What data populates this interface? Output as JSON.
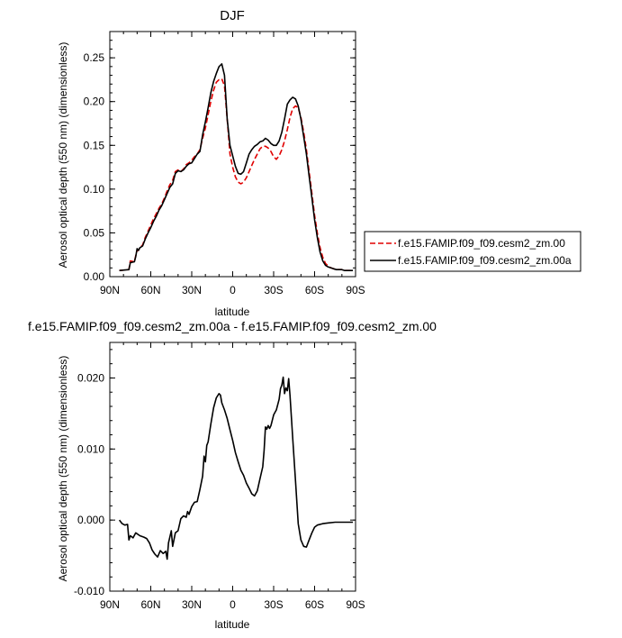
{
  "chart_data": [
    {
      "type": "line",
      "title": "DJF",
      "xlabel": "latitude",
      "ylabel": "Aerosol optical depth (550 nm) (dimensionless)",
      "xlim": [
        -90,
        90
      ],
      "ylim": [
        0,
        0.28
      ],
      "xticks": [
        -90,
        -60,
        -30,
        0,
        30,
        60,
        90
      ],
      "xticklabels": [
        "90N",
        "60N",
        "30N",
        "0",
        "30S",
        "60S",
        "90S"
      ],
      "yticks": [
        0,
        0.05,
        0.1,
        0.15,
        0.2,
        0.25
      ],
      "yticklabels": [
        "0.00",
        "0.05",
        "0.10",
        "0.15",
        "0.20",
        "0.25"
      ],
      "legend_position": "right",
      "series": [
        {
          "name": "f.e15.FAMIP.f09_f09.cesm2_zm.00",
          "color": "#e00000",
          "dash": "dashed",
          "x": [
            -83,
            -76,
            -75,
            -72,
            -71,
            -70,
            -69,
            -68,
            -66,
            -64,
            -62,
            -60,
            -58,
            -56,
            -54,
            -52,
            -50,
            -48,
            -46,
            -44,
            -42,
            -40,
            -38,
            -36,
            -34,
            -32,
            -30,
            -28,
            -26,
            -24,
            -22,
            -20,
            -18,
            -16,
            -14,
            -12,
            -10,
            -8,
            -6,
            -4,
            -2,
            0,
            2,
            4,
            6,
            8,
            10,
            12,
            14,
            16,
            18,
            20,
            22,
            24,
            26,
            28,
            30,
            32,
            34,
            36,
            38,
            40,
            42,
            44,
            46,
            48,
            50,
            52,
            54,
            56,
            58,
            60,
            62,
            64,
            66,
            68,
            70,
            72,
            74,
            76,
            78,
            80,
            82,
            84,
            86,
            88
          ],
          "y": [
            0.007,
            0.008,
            0.018,
            0.017,
            0.024,
            0.03,
            0.03,
            0.033,
            0.036,
            0.045,
            0.052,
            0.059,
            0.066,
            0.072,
            0.078,
            0.083,
            0.09,
            0.098,
            0.105,
            0.11,
            0.12,
            0.122,
            0.12,
            0.123,
            0.128,
            0.13,
            0.133,
            0.137,
            0.14,
            0.145,
            0.158,
            0.17,
            0.185,
            0.2,
            0.213,
            0.222,
            0.225,
            0.226,
            0.218,
            0.18,
            0.14,
            0.125,
            0.114,
            0.108,
            0.106,
            0.108,
            0.113,
            0.12,
            0.127,
            0.134,
            0.14,
            0.146,
            0.149,
            0.149,
            0.147,
            0.143,
            0.137,
            0.134,
            0.138,
            0.145,
            0.155,
            0.168,
            0.182,
            0.192,
            0.195,
            0.193,
            0.182,
            0.165,
            0.145,
            0.12,
            0.095,
            0.07,
            0.05,
            0.033,
            0.022,
            0.015,
            0.012,
            0.01,
            0.009,
            0.008,
            0.008,
            0.008,
            0.007,
            0.007,
            0.007,
            0.007
          ]
        },
        {
          "name": "f.e15.FAMIP.f09_f09.cesm2_zm.00a",
          "color": "#000000",
          "dash": "solid",
          "x": [
            -83,
            -76,
            -75,
            -72,
            -71,
            -70,
            -69,
            -68,
            -66,
            -64,
            -62,
            -60,
            -58,
            -56,
            -54,
            -52,
            -50,
            -48,
            -46,
            -44,
            -42,
            -40,
            -38,
            -36,
            -34,
            -32,
            -30,
            -28,
            -26,
            -24,
            -22,
            -20,
            -18,
            -16,
            -14,
            -12,
            -10,
            -8,
            -6,
            -4,
            -2,
            0,
            2,
            4,
            6,
            8,
            10,
            12,
            14,
            16,
            18,
            20,
            22,
            24,
            26,
            28,
            30,
            32,
            34,
            36,
            38,
            40,
            42,
            44,
            46,
            48,
            50,
            52,
            54,
            56,
            58,
            60,
            62,
            64,
            66,
            68,
            70,
            72,
            74,
            76,
            78,
            80,
            82,
            84,
            86,
            88
          ],
          "y": [
            0.007,
            0.008,
            0.016,
            0.017,
            0.023,
            0.032,
            0.03,
            0.033,
            0.035,
            0.043,
            0.05,
            0.056,
            0.063,
            0.069,
            0.076,
            0.081,
            0.088,
            0.095,
            0.102,
            0.106,
            0.118,
            0.121,
            0.12,
            0.122,
            0.126,
            0.129,
            0.13,
            0.135,
            0.14,
            0.143,
            0.162,
            0.177,
            0.193,
            0.21,
            0.223,
            0.232,
            0.24,
            0.243,
            0.23,
            0.18,
            0.15,
            0.138,
            0.126,
            0.118,
            0.117,
            0.12,
            0.13,
            0.14,
            0.145,
            0.149,
            0.151,
            0.154,
            0.155,
            0.158,
            0.156,
            0.152,
            0.15,
            0.15,
            0.155,
            0.165,
            0.18,
            0.197,
            0.202,
            0.205,
            0.203,
            0.195,
            0.18,
            0.16,
            0.14,
            0.115,
            0.09,
            0.065,
            0.045,
            0.028,
            0.018,
            0.013,
            0.011,
            0.01,
            0.009,
            0.008,
            0.008,
            0.008,
            0.007,
            0.007,
            0.007,
            0.007
          ]
        }
      ]
    },
    {
      "type": "line",
      "title": "f.e15.FAMIP.f09_f09.cesm2_zm.00a - f.e15.FAMIP.f09_f09.cesm2_zm.00",
      "xlabel": "latitude",
      "ylabel": "Aerosol optical depth (550 nm) (dimensionless)",
      "xlim": [
        -90,
        90
      ],
      "ylim": [
        -0.01,
        0.025
      ],
      "xticks": [
        -90,
        -60,
        -30,
        0,
        30,
        60,
        90
      ],
      "xticklabels": [
        "90N",
        "60N",
        "30N",
        "0",
        "30S",
        "60S",
        "90S"
      ],
      "yticks": [
        -0.01,
        0.0,
        0.01,
        0.02
      ],
      "yticklabels": [
        "-0.010",
        "0.000",
        "0.010",
        "0.020"
      ],
      "series": [
        {
          "color": "#000000",
          "dash": "solid",
          "x": [
            -83,
            -81,
            -79,
            -77,
            -76,
            -75,
            -73,
            -71,
            -68,
            -65,
            -63,
            -61,
            -59,
            -57,
            -55,
            -53,
            -51,
            -49,
            -48,
            -47,
            -45,
            -44,
            -42,
            -40,
            -38,
            -36,
            -34,
            -33,
            -32,
            -30,
            -28,
            -26,
            -24,
            -22,
            -21,
            -20,
            -19,
            -18,
            -16,
            -14,
            -12,
            -10,
            -9,
            -8,
            -6,
            -4,
            -2,
            0,
            2,
            4,
            6,
            8,
            10,
            12,
            14,
            16,
            18,
            20,
            22,
            23,
            24,
            25,
            26,
            27,
            28,
            30,
            32,
            34,
            35,
            36,
            37,
            38,
            39,
            40,
            41,
            42,
            43,
            44,
            46,
            48,
            50,
            52,
            54,
            56,
            58,
            60,
            62,
            66,
            70,
            75,
            80,
            88
          ],
          "y": [
            0.0,
            -0.0005,
            -0.0007,
            -0.0006,
            -0.0028,
            -0.0022,
            -0.0025,
            -0.0018,
            -0.0022,
            -0.0024,
            -0.0026,
            -0.0032,
            -0.0042,
            -0.0048,
            -0.0052,
            -0.0043,
            -0.0047,
            -0.0044,
            -0.0055,
            -0.0032,
            -0.0015,
            -0.0037,
            -0.0018,
            -0.0015,
            0.0002,
            0.0006,
            0.0004,
            0.0012,
            0.0008,
            0.0019,
            0.0025,
            0.0026,
            0.0043,
            0.0062,
            0.009,
            0.0082,
            0.0105,
            0.011,
            0.0135,
            0.0158,
            0.0172,
            0.0178,
            0.0176,
            0.0165,
            0.0155,
            0.0143,
            0.0127,
            0.0112,
            0.0095,
            0.0082,
            0.007,
            0.0063,
            0.0052,
            0.0045,
            0.0037,
            0.0034,
            0.0041,
            0.0058,
            0.0075,
            0.0098,
            0.0131,
            0.0128,
            0.0133,
            0.0129,
            0.0133,
            0.0148,
            0.0155,
            0.017,
            0.0185,
            0.019,
            0.0201,
            0.0178,
            0.0186,
            0.0182,
            0.0199,
            0.0175,
            0.0145,
            0.0115,
            0.0055,
            -0.0005,
            -0.0028,
            -0.0037,
            -0.0038,
            -0.0028,
            -0.0018,
            -0.001,
            -0.0007,
            -0.0005,
            -0.0004,
            -0.0003,
            -0.0003,
            -0.0003
          ]
        }
      ]
    }
  ]
}
